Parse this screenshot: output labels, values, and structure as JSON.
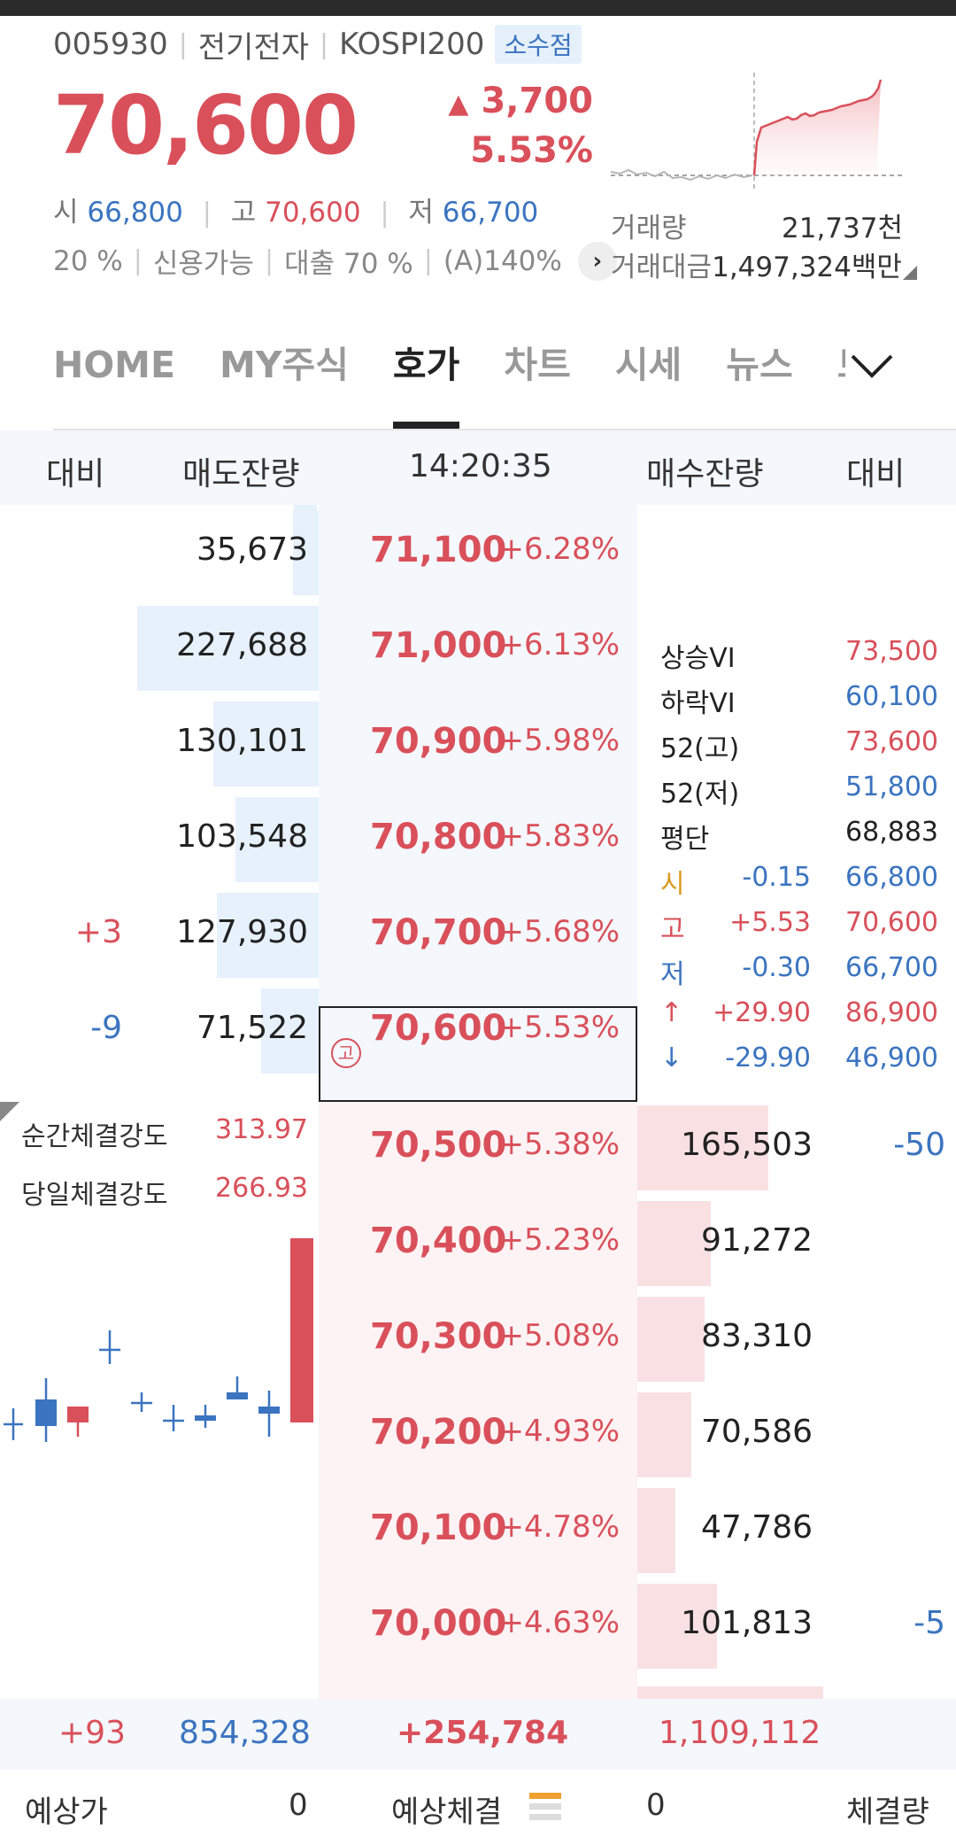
{
  "stock": {
    "code": "005930",
    "name": "전기전자",
    "index": "KOSPI200",
    "badge": "소수점",
    "price": "70,600",
    "change": "3,700",
    "change_pct": "5.53%",
    "open_label": "시",
    "open": "66,800",
    "high_label": "고",
    "high": "70,600",
    "low_label": "저",
    "low": "66,700",
    "margin": "20 %",
    "credit": "신용가능",
    "loan": "대출 70 %",
    "a_ratio": "(A)140%",
    "volume_label": "거래량",
    "volume": "21,737천",
    "amount_label": "거래대금",
    "amount": "1,497,324백만"
  },
  "tabs": [
    {
      "label": "HOME"
    },
    {
      "label": "MY주식"
    },
    {
      "label": "호가"
    },
    {
      "label": "차트"
    },
    {
      "label": "시세"
    },
    {
      "label": "뉴스"
    },
    {
      "label": "토"
    }
  ],
  "orderbook": {
    "headers": {
      "left_cmp": "대비",
      "ask_qty": "매도잔량",
      "time": "14:20:35",
      "bid_qty": "매수잔량",
      "right_cmp": "대비"
    },
    "asks": [
      {
        "qty": "35,673",
        "price": "71,100",
        "pct": "+6.28%",
        "cmp": "",
        "fill": 0.08
      },
      {
        "qty": "227,688",
        "price": "71,000",
        "pct": "+6.13%",
        "cmp": "",
        "fill": 0.57
      },
      {
        "qty": "130,101",
        "price": "70,900",
        "pct": "+5.98%",
        "cmp": "",
        "fill": 0.33
      },
      {
        "qty": "103,548",
        "price": "70,800",
        "pct": "+5.83%",
        "cmp": "",
        "fill": 0.26
      },
      {
        "qty": "127,930",
        "price": "70,700",
        "pct": "+5.68%",
        "cmp": "+3",
        "fill": 0.32
      },
      {
        "qty": "71,522",
        "price": "70,600",
        "pct": "+5.53%",
        "cmp": "-9",
        "fill": 0.18
      }
    ],
    "bids": [
      {
        "qty": "165,503",
        "price": "70,500",
        "pct": "+5.38%",
        "cmp": "-50",
        "fill": 0.41
      },
      {
        "qty": "91,272",
        "price": "70,400",
        "pct": "+5.23%",
        "cmp": "",
        "fill": 0.23
      },
      {
        "qty": "83,310",
        "price": "70,300",
        "pct": "+5.08%",
        "cmp": "",
        "fill": 0.21
      },
      {
        "qty": "70,586",
        "price": "70,200",
        "pct": "+4.93%",
        "cmp": "",
        "fill": 0.17
      },
      {
        "qty": "47,786",
        "price": "70,100",
        "pct": "+4.78%",
        "cmp": "",
        "fill": 0.12
      },
      {
        "qty": "101,813",
        "price": "70,000",
        "pct": "+4.63%",
        "cmp": "-5",
        "fill": 0.25
      }
    ],
    "high_mark": "고"
  },
  "info_panel": [
    {
      "label": "상승VI",
      "mid": "",
      "value": "73,500",
      "label_color": "#222222",
      "mid_color": "",
      "value_color": "#d9505a"
    },
    {
      "label": "하락VI",
      "mid": "",
      "value": "60,100",
      "label_color": "#222222",
      "mid_color": "",
      "value_color": "#3b74c0"
    },
    {
      "label": "52(고)",
      "mid": "",
      "value": "73,600",
      "label_color": "#222222",
      "mid_color": "",
      "value_color": "#d9505a"
    },
    {
      "label": "52(저)",
      "mid": "",
      "value": "51,800",
      "label_color": "#222222",
      "mid_color": "",
      "value_color": "#3b74c0"
    },
    {
      "label": "평단",
      "mid": "",
      "value": "68,883",
      "label_color": "#222222",
      "mid_color": "",
      "value_color": "#222222"
    },
    {
      "label": "시",
      "mid": "-0.15",
      "value": "66,800",
      "label_color": "#d99a1e",
      "mid_color": "#3b74c0",
      "value_color": "#3b74c0"
    },
    {
      "label": "고",
      "mid": "+5.53",
      "value": "70,600",
      "label_color": "#d9505a",
      "mid_color": "#d9505a",
      "value_color": "#d9505a"
    },
    {
      "label": "저",
      "mid": "-0.30",
      "value": "66,700",
      "label_color": "#3b74c0",
      "mid_color": "#3b74c0",
      "value_color": "#3b74c0"
    },
    {
      "label": "↑",
      "mid": "+29.90",
      "value": "86,900",
      "label_color": "#d9505a",
      "mid_color": "#d9505a",
      "value_color": "#d9505a"
    },
    {
      "label": "↓",
      "mid": "-29.90",
      "value": "46,900",
      "label_color": "#3b74c0",
      "mid_color": "#3b74c0",
      "value_color": "#3b74c0"
    }
  ],
  "strength": {
    "instant_label": "순간체결강도",
    "instant_value": "313.97",
    "daily_label": "당일체결강도",
    "daily_value": "266.93"
  },
  "totals": {
    "ask_cmp": "+93",
    "ask_total": "854,328",
    "net": "+254,784",
    "bid_total": "1,109,112"
  },
  "bottom": {
    "expected_price_label": "예상가",
    "expected_price": "0",
    "expected_exec_label": "예상체결",
    "expected_exec": "0",
    "exec_volume_label": "체결량"
  },
  "colors": {
    "up": "#d9505a",
    "down": "#3b74c0"
  }
}
